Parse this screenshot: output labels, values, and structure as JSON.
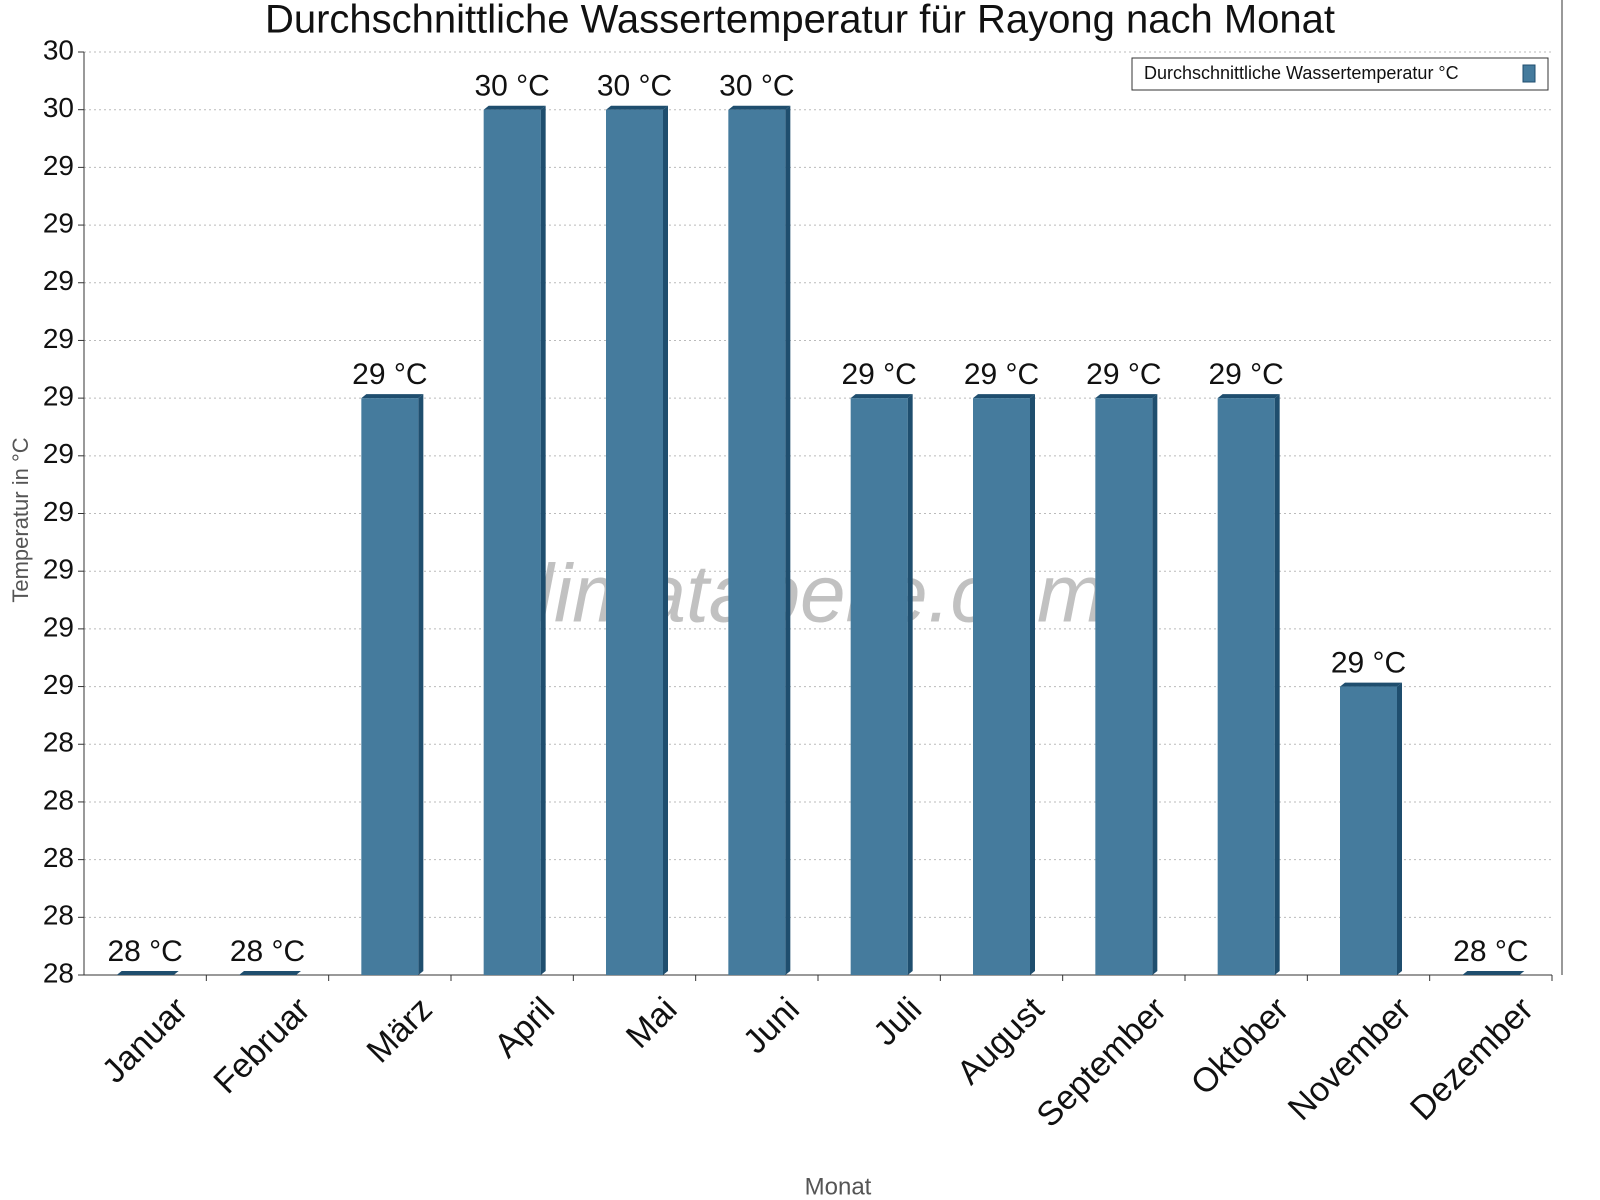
{
  "chart_data": {
    "type": "bar",
    "title": "Durchschnittliche Wassertemperatur für Rayong nach Monat",
    "watermark": "klimatabelle.com",
    "x_label": "Monat",
    "y_label": "Temperatur in °C",
    "categories": [
      "Januar",
      "Februar",
      "März",
      "April",
      "Mai",
      "Juni",
      "Juli",
      "August",
      "September",
      "Oktober",
      "November",
      "Dezember"
    ],
    "series": [
      {
        "name": "Durchschnittliche Wassertemperatur °C",
        "color": "#457b9d",
        "values": [
          28,
          28,
          29.25,
          29.875,
          29.875,
          29.875,
          29.25,
          29.25,
          29.25,
          29.25,
          28.625,
          28
        ],
        "value_labels": [
          "28 °C",
          "28 °C",
          "29 °C",
          "30 °C",
          "30 °C",
          "30 °C",
          "29 °C",
          "29 °C",
          "29 °C",
          "29 °C",
          "29 °C",
          "28 °C"
        ]
      }
    ],
    "ylim": [
      28,
      30
    ],
    "yticks": [
      {
        "value": 28,
        "label": "28"
      },
      {
        "value": 28.125,
        "label": "28"
      },
      {
        "value": 28.25,
        "label": "28"
      },
      {
        "value": 28.375,
        "label": "28"
      },
      {
        "value": 28.5,
        "label": "28"
      },
      {
        "value": 28.625,
        "label": "29"
      },
      {
        "value": 28.75,
        "label": "29"
      },
      {
        "value": 28.875,
        "label": "29"
      },
      {
        "value": 29,
        "label": "29"
      },
      {
        "value": 29.125,
        "label": "29"
      },
      {
        "value": 29.25,
        "label": "29"
      },
      {
        "value": 29.375,
        "label": "29"
      },
      {
        "value": 29.5,
        "label": "29"
      },
      {
        "value": 29.625,
        "label": "29"
      },
      {
        "value": 29.75,
        "label": "29"
      },
      {
        "value": 29.875,
        "label": "30"
      },
      {
        "value": 30,
        "label": "30"
      }
    ],
    "grid": true,
    "legend": "top-right"
  }
}
